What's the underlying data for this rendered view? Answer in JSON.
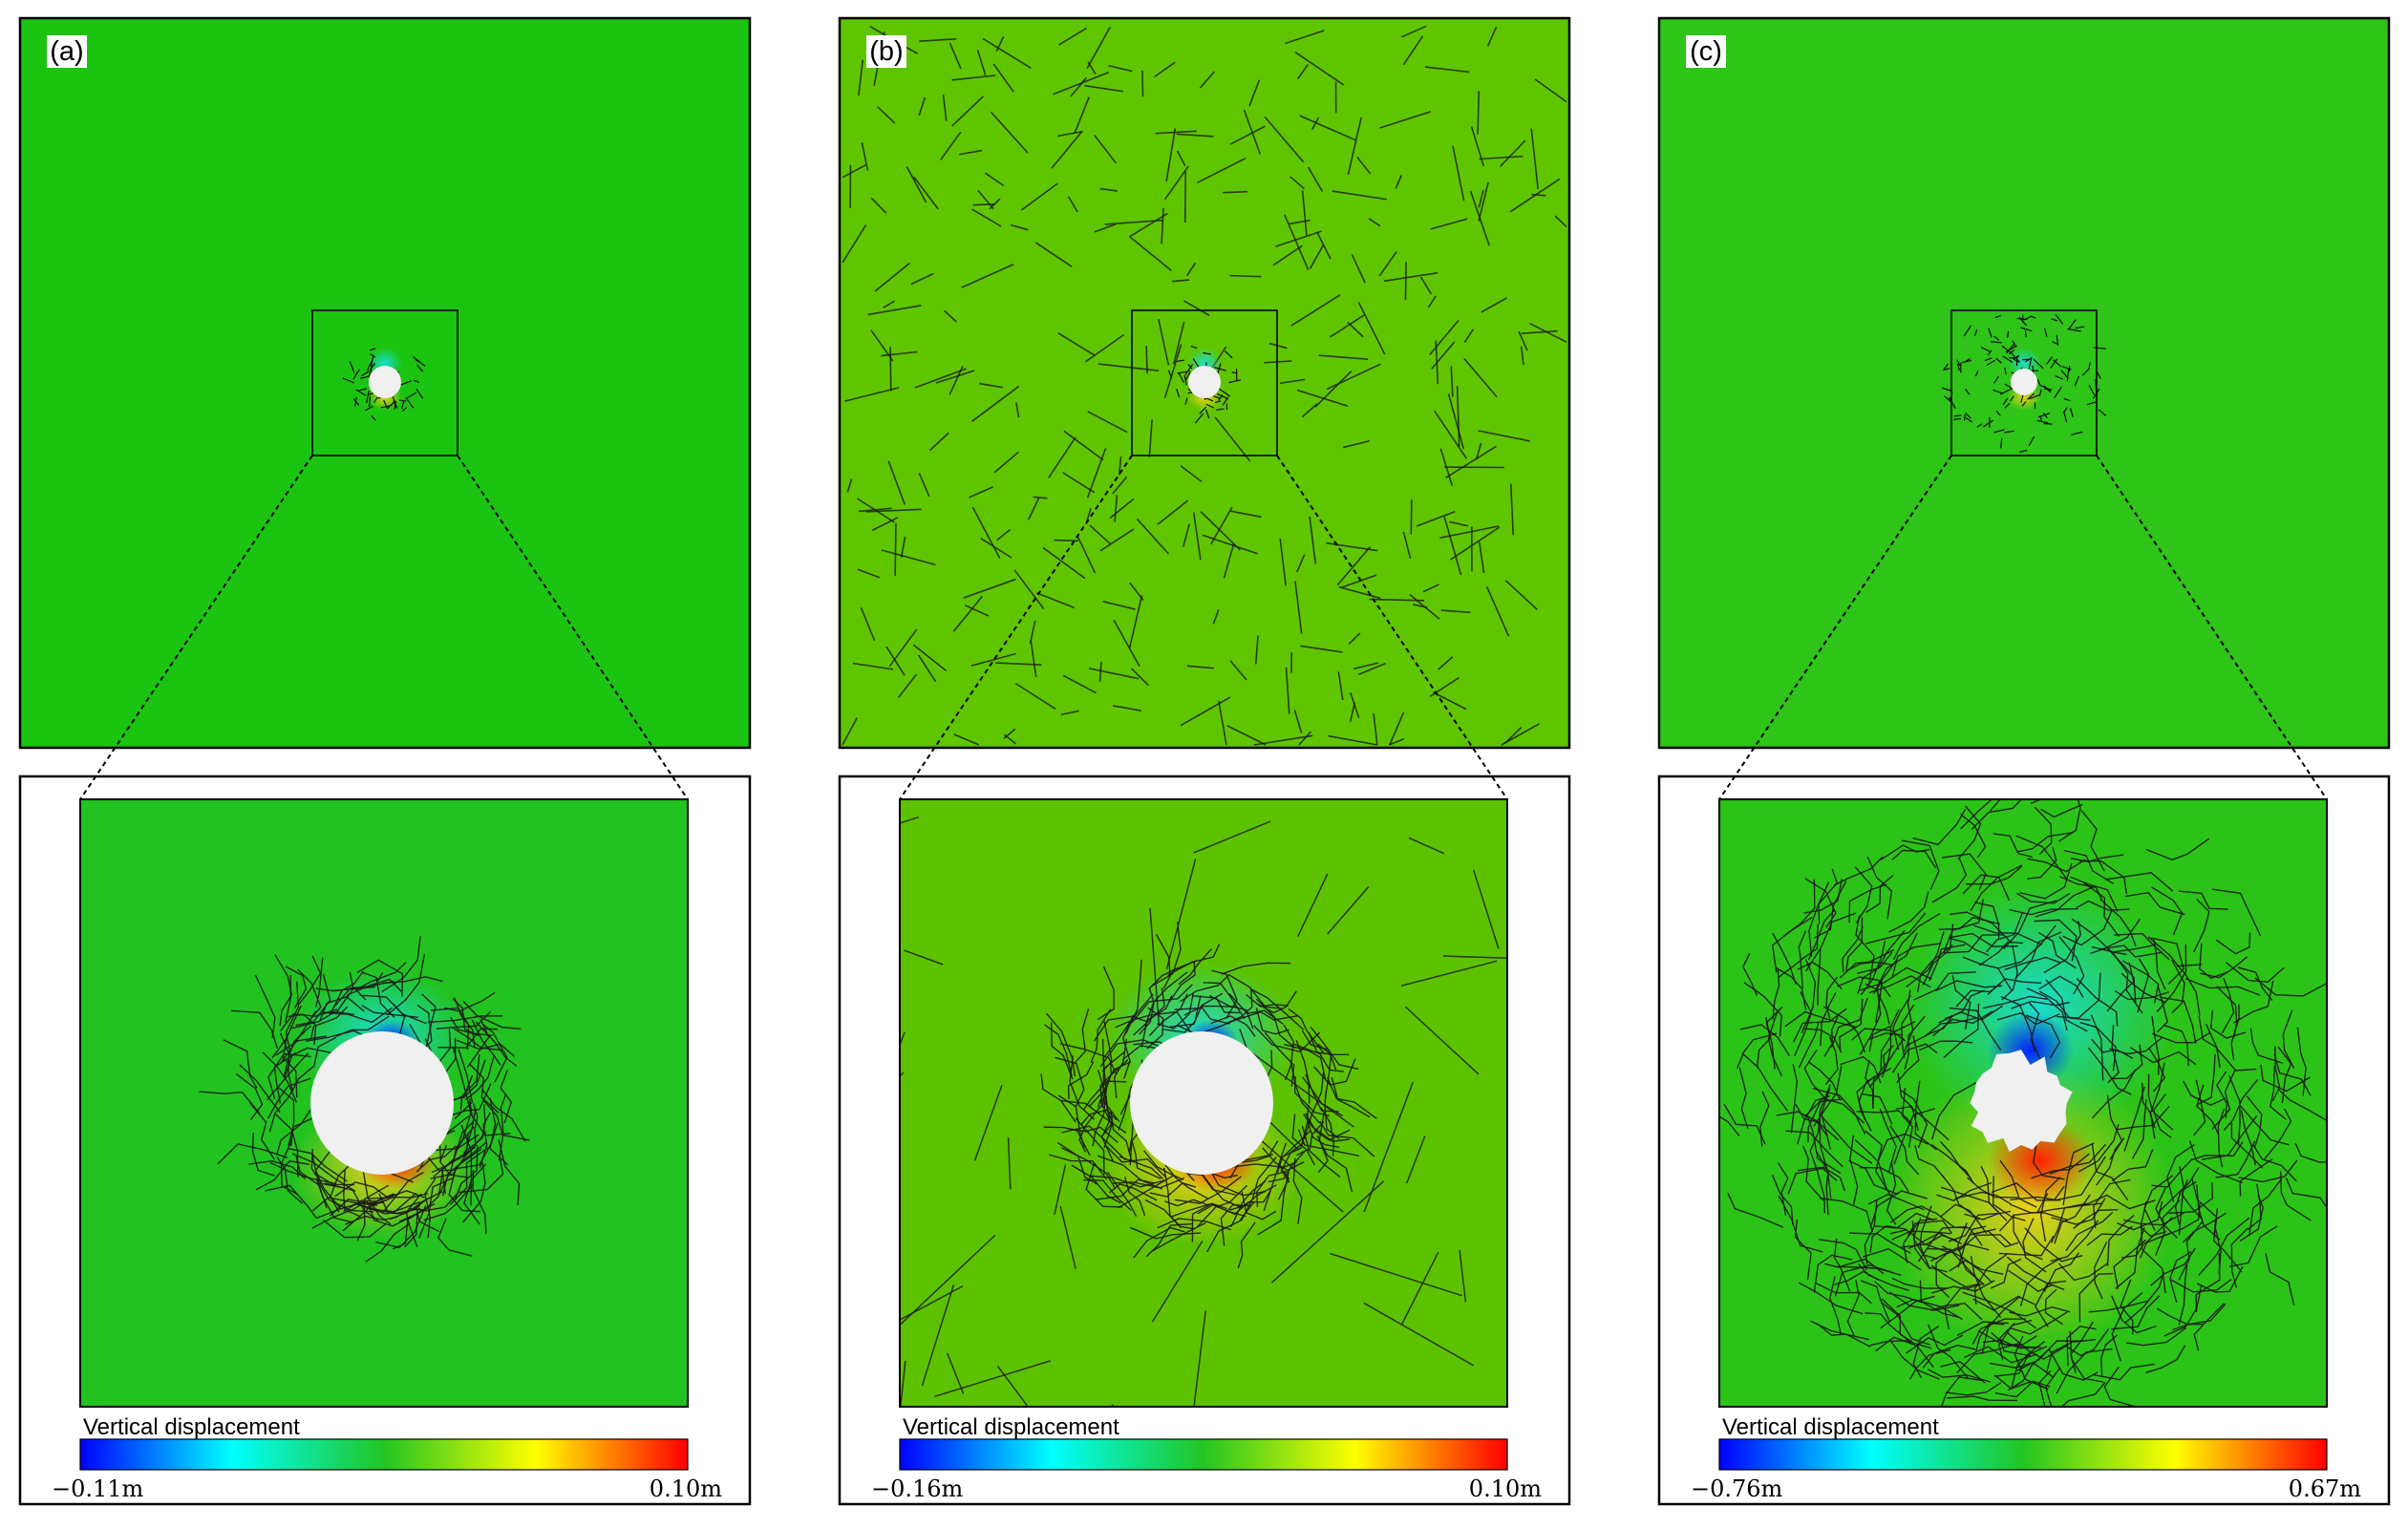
{
  "panels": [
    {
      "id": "a",
      "label": "(a)",
      "legend_title": "Vertical displacement",
      "min_label": "−0.11m",
      "max_label": "0.10m",
      "far_color": "#1cc412",
      "zoom_color": "#22c220",
      "hole": "circle",
      "fractures": "sparse"
    },
    {
      "id": "b",
      "label": "(b)",
      "legend_title": "Vertical displacement",
      "min_label": "−0.16m",
      "max_label": "0.10m",
      "far_color": "#5fc500",
      "zoom_color": "#5cc200",
      "hole": "circle",
      "fractures": "random"
    },
    {
      "id": "c",
      "label": "(c)",
      "legend_title": "Vertical displacement",
      "min_label": "−0.76m",
      "max_label": "0.67m",
      "far_color": "#2ec418",
      "zoom_color": "#2cc318",
      "hole": "irregular",
      "fractures": "dense"
    }
  ],
  "colormap": [
    "#0000ff",
    "#00ffff",
    "#22c522",
    "#ffff00",
    "#ff0000"
  ]
}
